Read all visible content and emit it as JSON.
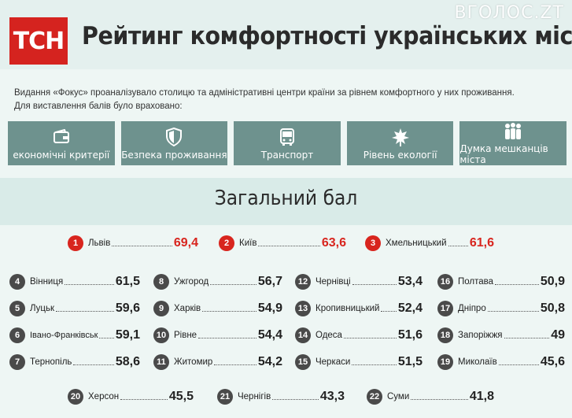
{
  "header": {
    "logo": "ТСН",
    "title": "Рейтинг комфортності українських міст",
    "watermark": "ВГОЛОС.ZT"
  },
  "intro": {
    "line1": "Видання «Фокус» проаналізувало столицю та адміністративні центри країни за рівнем комфортного у них проживання.",
    "line2": "Для виставлення балів було враховано:"
  },
  "criteria": [
    {
      "icon": "wallet-icon",
      "label": "економічні критерії"
    },
    {
      "icon": "shield-icon",
      "label": "Безпека проживання"
    },
    {
      "icon": "bus-icon",
      "label": "Транспорт"
    },
    {
      "icon": "leaf-icon",
      "label": "Рівень екології"
    },
    {
      "icon": "people-icon",
      "label": "Думка мешканців міста"
    }
  ],
  "section_title": "Загальний бал",
  "colors": {
    "accent": "#d8251e",
    "criteria_bg": "#6e928e",
    "badge_dark": "#4a4a4a"
  },
  "rankings": [
    {
      "rank": "1",
      "city": "Львів",
      "score": "69,4"
    },
    {
      "rank": "2",
      "city": "Київ",
      "score": "63,6"
    },
    {
      "rank": "3",
      "city": "Хмельницький",
      "score": "61,6"
    },
    {
      "rank": "4",
      "city": "Вінниця",
      "score": "61,5"
    },
    {
      "rank": "5",
      "city": "Луцьк",
      "score": "59,6"
    },
    {
      "rank": "6",
      "city": "Івано-Франківськ",
      "score": "59,1"
    },
    {
      "rank": "7",
      "city": "Тернопіль",
      "score": "58,6"
    },
    {
      "rank": "8",
      "city": "Ужгород",
      "score": "56,7"
    },
    {
      "rank": "9",
      "city": "Харків",
      "score": "54,9"
    },
    {
      "rank": "10",
      "city": "Рівне",
      "score": "54,4"
    },
    {
      "rank": "11",
      "city": "Житомир",
      "score": "54,2"
    },
    {
      "rank": "12",
      "city": "Чернівці",
      "score": "53,4"
    },
    {
      "rank": "13",
      "city": "Кропивницький",
      "score": "52,4"
    },
    {
      "rank": "14",
      "city": "Одеса",
      "score": "51,6"
    },
    {
      "rank": "15",
      "city": "Черкаси",
      "score": "51,5"
    },
    {
      "rank": "16",
      "city": "Полтава",
      "score": "50,9"
    },
    {
      "rank": "17",
      "city": "Дніпро",
      "score": "50,8"
    },
    {
      "rank": "18",
      "city": "Запоріжжя",
      "score": "49"
    },
    {
      "rank": "19",
      "city": "Миколаїв",
      "score": "45,6"
    },
    {
      "rank": "20",
      "city": "Херсон",
      "score": "45,5"
    },
    {
      "rank": "21",
      "city": "Чернігів",
      "score": "43,3"
    },
    {
      "rank": "22",
      "city": "Суми",
      "score": "41,8"
    }
  ]
}
